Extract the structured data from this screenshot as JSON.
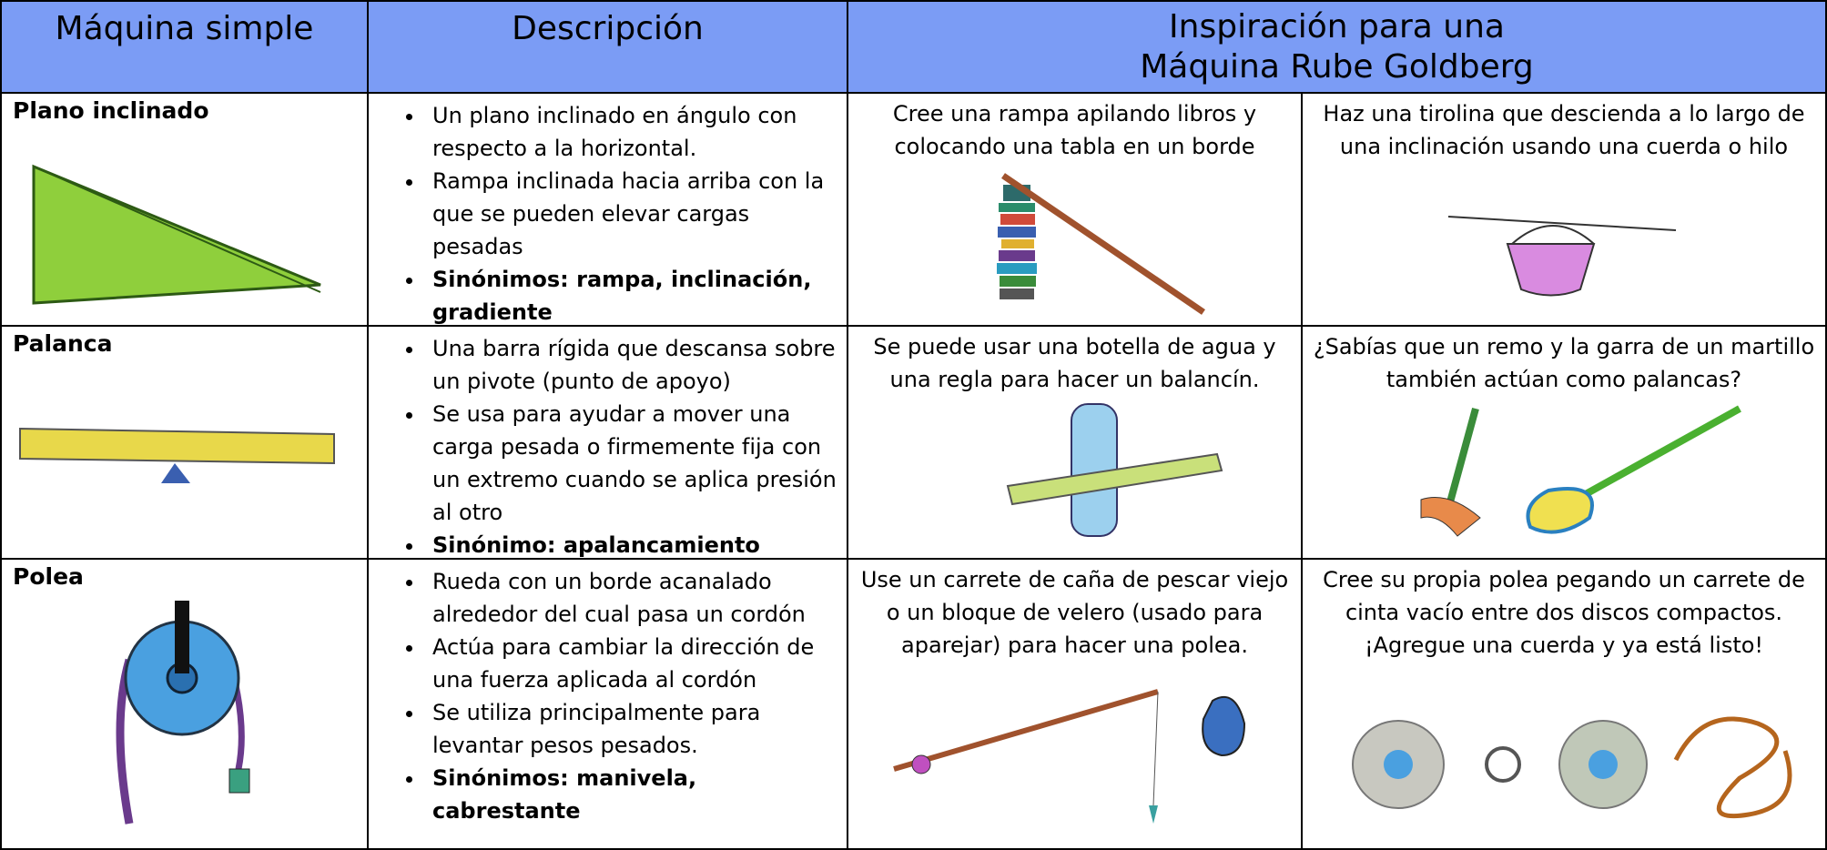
{
  "header": {
    "col1": "Máquina simple",
    "col2": "Descripción",
    "col3_line1": "Inspiración para una",
    "col3_line2": "Máquina Rube Goldberg"
  },
  "rows": [
    {
      "name": "Plano inclinado",
      "bullets": [
        "Un plano inclinado en ángulo con respecto a la horizontal.",
        "Rampa inclinada hacia arriba con la que se pueden elevar cargas pesadas",
        "Sinónimos: rampa, inclinación, gradiente"
      ],
      "idea1": "Cree una rampa apilando libros y colocando una tabla en un borde",
      "idea2": "Haz una tirolina que descienda a lo largo de una inclinación usando una cuerda o hilo"
    },
    {
      "name": "Palanca",
      "bullets": [
        "Una barra rígida que descansa sobre un pivote (punto de apoyo)",
        "Se usa para ayudar a mover una carga pesada o firmemente fija con un extremo cuando se aplica presión al otro",
        "Sinónimo: apalancamiento"
      ],
      "idea1": "Se puede usar una botella de agua y una regla para hacer un balancín.",
      "idea2": "¿Sabías que un remo y la garra de un martillo también actúan como palancas?"
    },
    {
      "name": "Polea",
      "bullets": [
        "Rueda con un borde acanalado alrededor del cual pasa un cordón",
        "Actúa para cambiar la dirección de una fuerza aplicada al cordón",
        "Se utiliza principalmente para levantar pesos pesados.",
        "Sinónimos: manivela, cabrestante"
      ],
      "idea1": "Use un carrete de caña de pescar viejo o un bloque de velero (usado para aparejar) para hacer una polea.",
      "idea2": "Cree su propia polea pegando un carrete de cinta vacío entre dos discos compactos. ¡Agregue una cuerda y ya está listo!"
    }
  ]
}
